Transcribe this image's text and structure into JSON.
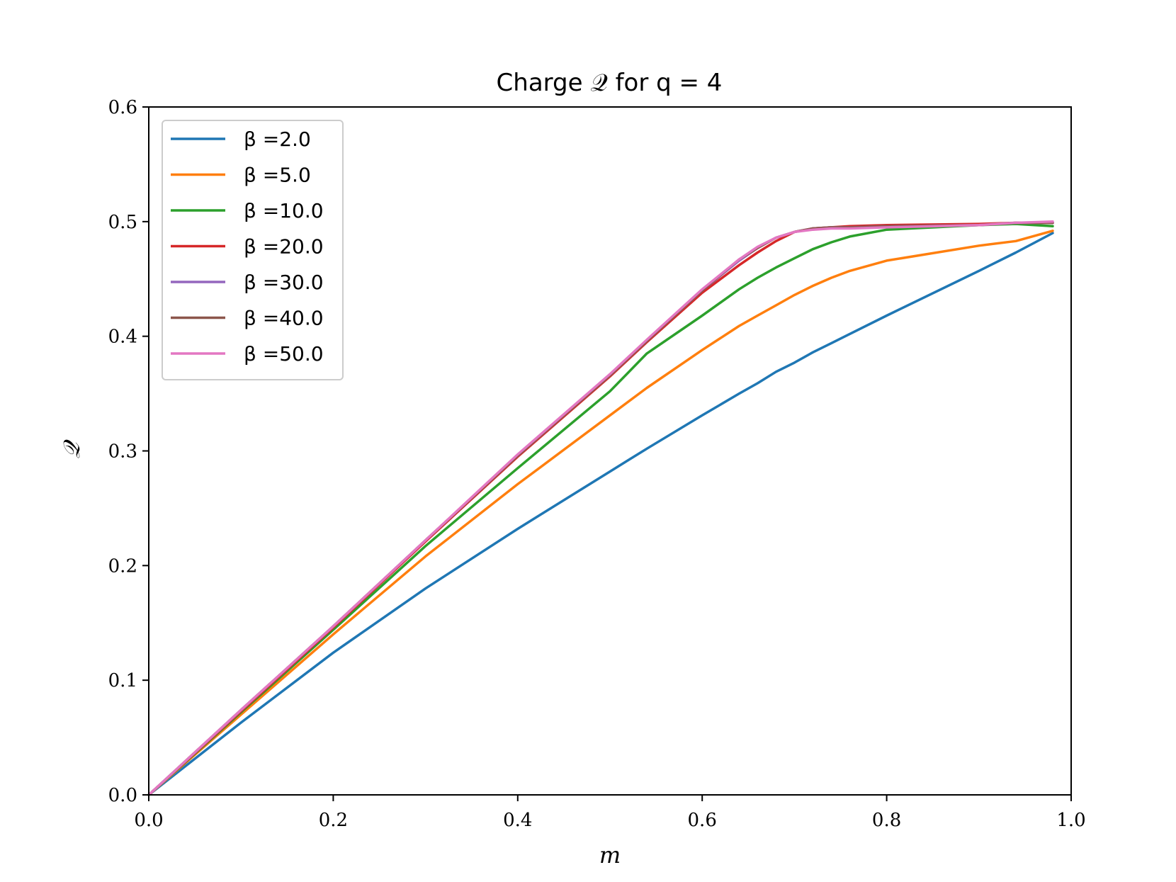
{
  "chart_data": {
    "type": "line",
    "title": "Charge 𝒬 for q = 4",
    "xlabel": "m",
    "ylabel": "𝒬",
    "xlim": [
      0.0,
      1.0
    ],
    "ylim": [
      0.0,
      0.6
    ],
    "xticks": [
      "0.0",
      "0.2",
      "0.4",
      "0.6",
      "0.8",
      "1.0"
    ],
    "yticks": [
      "0.0",
      "0.1",
      "0.2",
      "0.3",
      "0.4",
      "0.5",
      "0.6"
    ],
    "grid": false,
    "legend_position": "upper-left",
    "x": [
      0.0,
      0.1,
      0.2,
      0.3,
      0.4,
      0.5,
      0.54,
      0.6,
      0.64,
      0.66,
      0.68,
      0.7,
      0.72,
      0.74,
      0.76,
      0.8,
      0.9,
      0.94,
      0.98
    ],
    "series": [
      {
        "name": "β =2.0",
        "color": "#1f77b4",
        "values": [
          0.0,
          0.063,
          0.124,
          0.18,
          0.232,
          0.282,
          0.302,
          0.331,
          0.35,
          0.359,
          0.369,
          0.377,
          0.386,
          0.394,
          0.402,
          0.418,
          0.457,
          0.473,
          0.49
        ]
      },
      {
        "name": "β =5.0",
        "color": "#ff7f0e",
        "values": [
          0.0,
          0.07,
          0.14,
          0.208,
          0.271,
          0.331,
          0.355,
          0.388,
          0.409,
          0.418,
          0.427,
          0.436,
          0.444,
          0.451,
          0.457,
          0.466,
          0.479,
          0.483,
          0.492
        ]
      },
      {
        "name": "β =10.0",
        "color": "#2ca02c",
        "values": [
          0.0,
          0.072,
          0.144,
          0.217,
          0.285,
          0.352,
          0.385,
          0.418,
          0.441,
          0.451,
          0.46,
          0.468,
          0.476,
          0.482,
          0.487,
          0.493,
          0.497,
          0.498,
          0.496
        ]
      },
      {
        "name": "β =20.0",
        "color": "#d62728",
        "values": [
          0.0,
          0.073,
          0.146,
          0.221,
          0.295,
          0.365,
          0.395,
          0.438,
          0.462,
          0.473,
          0.483,
          0.491,
          0.494,
          0.495,
          0.496,
          0.497,
          0.498,
          0.499,
          0.499
        ]
      },
      {
        "name": "β =30.0",
        "color": "#9467bd",
        "values": [
          0.0,
          0.074,
          0.147,
          0.222,
          0.296,
          0.366,
          0.396,
          0.44,
          0.466,
          0.477,
          0.486,
          0.491,
          0.494,
          0.495,
          0.495,
          0.496,
          0.497,
          0.499,
          0.499
        ]
      },
      {
        "name": "β =40.0",
        "color": "#8c564b",
        "values": [
          0.0,
          0.074,
          0.147,
          0.222,
          0.296,
          0.366,
          0.396,
          0.44,
          0.467,
          0.477,
          0.486,
          0.491,
          0.494,
          0.495,
          0.495,
          0.496,
          0.497,
          0.499,
          0.499
        ]
      },
      {
        "name": "β =50.0",
        "color": "#e377c2",
        "values": [
          0.0,
          0.074,
          0.147,
          0.222,
          0.297,
          0.367,
          0.397,
          0.441,
          0.467,
          0.478,
          0.486,
          0.491,
          0.493,
          0.494,
          0.494,
          0.495,
          0.497,
          0.499,
          0.5
        ]
      }
    ]
  }
}
